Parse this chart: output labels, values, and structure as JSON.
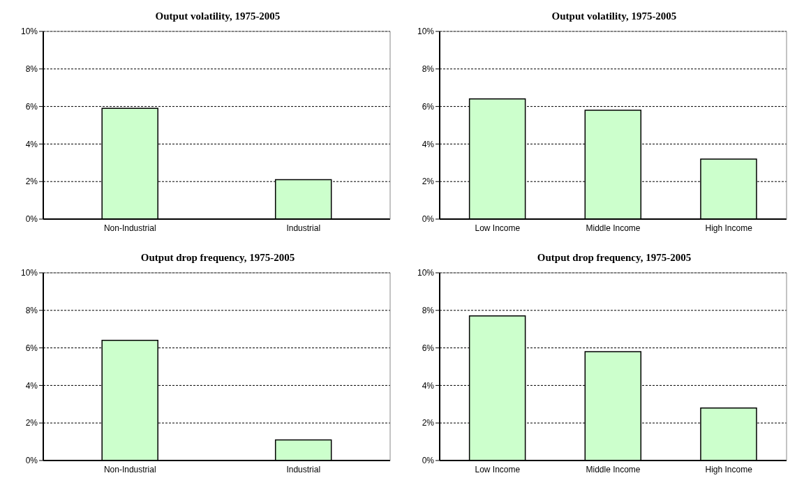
{
  "chart_data": [
    {
      "type": "bar",
      "title": "Output volatility, 1975-2005",
      "categories": [
        "Non-Industrial",
        "Industrial"
      ],
      "values": [
        5.9,
        2.1
      ],
      "color": "#ccffcc",
      "ylim": [
        0,
        10
      ],
      "yticks": [
        {
          "value": 0,
          "label": "0%"
        },
        {
          "value": 2,
          "label": "2%"
        },
        {
          "value": 4,
          "label": "4%"
        },
        {
          "value": 6,
          "label": "6%"
        },
        {
          "value": 8,
          "label": "8%"
        },
        {
          "value": 10,
          "label": "10%"
        }
      ],
      "grid": "y"
    },
    {
      "type": "bar",
      "title": "Output volatility, 1975-2005",
      "categories": [
        "Low Income",
        "Middle Income",
        "High Income"
      ],
      "values": [
        6.4,
        5.8,
        3.2
      ],
      "color": "#ccffcc",
      "ylim": [
        0,
        10
      ],
      "yticks": [
        {
          "value": 0,
          "label": "0%"
        },
        {
          "value": 2,
          "label": "2%"
        },
        {
          "value": 4,
          "label": "4%"
        },
        {
          "value": 6,
          "label": "6%"
        },
        {
          "value": 8,
          "label": "8%"
        },
        {
          "value": 10,
          "label": "10%"
        }
      ],
      "grid": "y"
    },
    {
      "type": "bar",
      "title": "Output drop frequency, 1975-2005",
      "categories": [
        "Non-Industrial",
        "Industrial"
      ],
      "values": [
        6.4,
        1.1
      ],
      "color": "#ccffcc",
      "ylim": [
        0,
        10
      ],
      "yticks": [
        {
          "value": 0,
          "label": "0%"
        },
        {
          "value": 2,
          "label": "2%"
        },
        {
          "value": 4,
          "label": "4%"
        },
        {
          "value": 6,
          "label": "6%"
        },
        {
          "value": 8,
          "label": "8%"
        },
        {
          "value": 10,
          "label": "10%"
        }
      ],
      "grid": "y"
    },
    {
      "type": "bar",
      "title": "Output drop frequency, 1975-2005",
      "categories": [
        "Low Income",
        "Middle Income",
        "High Income"
      ],
      "values": [
        7.7,
        5.8,
        2.8
      ],
      "color": "#ccffcc",
      "ylim": [
        0,
        10
      ],
      "yticks": [
        {
          "value": 0,
          "label": "0%"
        },
        {
          "value": 2,
          "label": "2%"
        },
        {
          "value": 4,
          "label": "4%"
        },
        {
          "value": 6,
          "label": "6%"
        },
        {
          "value": 8,
          "label": "8%"
        },
        {
          "value": 10,
          "label": "10%"
        }
      ],
      "grid": "y"
    }
  ]
}
